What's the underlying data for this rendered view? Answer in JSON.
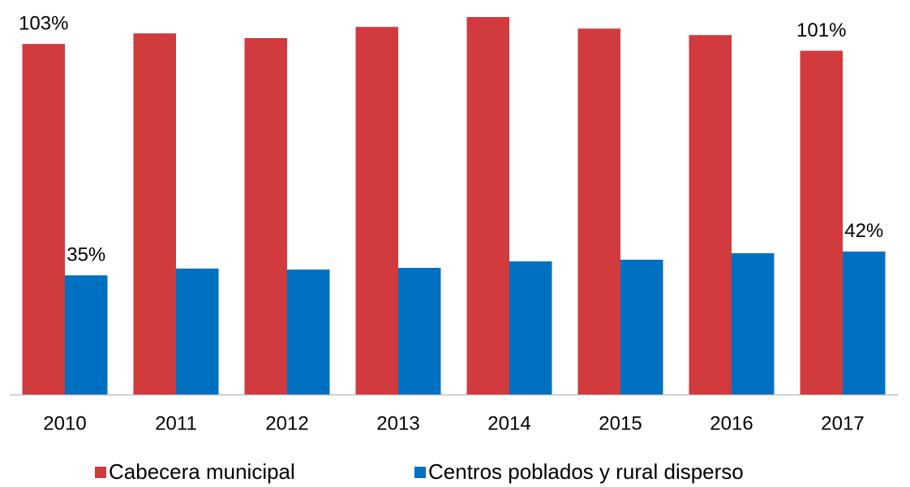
{
  "chart_data": {
    "type": "bar",
    "categories": [
      "2010",
      "2011",
      "2012",
      "2013",
      "2014",
      "2015",
      "2016",
      "2017"
    ],
    "series": [
      {
        "name": "Cabecera municipal",
        "color": "#d13b3e",
        "values": [
          103,
          106.1,
          104.7,
          108,
          110.9,
          107.5,
          105.6,
          101
        ],
        "value_labels": [
          "103%",
          null,
          null,
          null,
          null,
          null,
          null,
          "101%"
        ]
      },
      {
        "name": "Centros poblados y rural disperso",
        "color": "#0070c0",
        "values": [
          35,
          37,
          36.7,
          37.2,
          39.1,
          39.6,
          41.5,
          42
        ],
        "value_labels": [
          "35%",
          null,
          null,
          null,
          null,
          null,
          null,
          "42%"
        ]
      }
    ]
  }
}
